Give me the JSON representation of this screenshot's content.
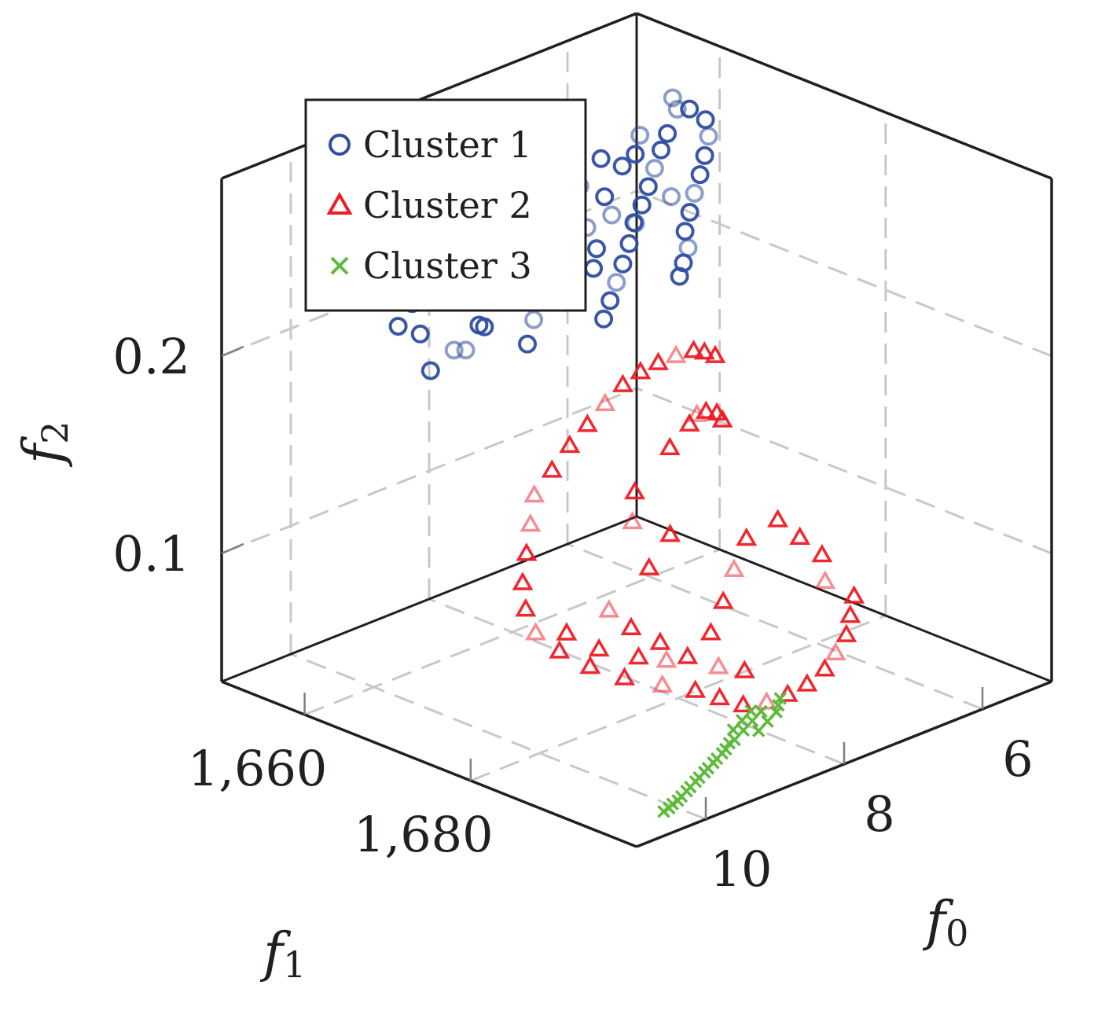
{
  "chart_data": {
    "type": "scatter",
    "dimensions": 3,
    "title": "",
    "axes": {
      "x": {
        "label": "f",
        "subscript": "0",
        "ticks": [
          "6",
          "8",
          "10"
        ],
        "range": [
          5,
          11
        ]
      },
      "y": {
        "label": "f",
        "subscript": "1",
        "ticks": [
          "1,660",
          "1,680"
        ],
        "range": [
          1650,
          1700
        ]
      },
      "z": {
        "label": "f",
        "subscript": "2",
        "ticks": [
          "0.1",
          "0.2"
        ],
        "range": [
          0.035,
          0.29
        ]
      }
    },
    "grid": true,
    "legend": {
      "placement": "top-left",
      "entries": [
        {
          "label": "Cluster 1",
          "marker": "circle",
          "color": "#2f4ea0"
        },
        {
          "label": "Cluster 2",
          "marker": "triangle",
          "color": "#ee1c25"
        },
        {
          "label": "Cluster 3",
          "marker": "cross",
          "color": "#5dba3a"
        }
      ]
    },
    "series": [
      {
        "name": "Cluster 1",
        "marker": "circle",
        "color": "#2f4ea0",
        "points": [
          [
            5.2,
            1656.0,
            0.26
          ],
          [
            5.1,
            1657.2,
            0.255
          ],
          [
            5.0,
            1658.3,
            0.25
          ],
          [
            5.1,
            1659.5,
            0.245
          ],
          [
            5.3,
            1660.7,
            0.24
          ],
          [
            5.5,
            1661.8,
            0.235
          ],
          [
            5.7,
            1662.8,
            0.23
          ],
          [
            5.9,
            1663.9,
            0.225
          ],
          [
            6.1,
            1665.0,
            0.22
          ],
          [
            6.2,
            1666.2,
            0.215
          ],
          [
            6.4,
            1667.3,
            0.212
          ],
          [
            6.6,
            1668.5,
            0.21
          ],
          [
            5.3,
            1657.4,
            0.258
          ],
          [
            5.6,
            1658.7,
            0.252
          ],
          [
            5.8,
            1659.6,
            0.248
          ],
          [
            6.0,
            1660.5,
            0.243
          ],
          [
            6.2,
            1661.4,
            0.238
          ],
          [
            6.4,
            1662.3,
            0.233
          ],
          [
            6.6,
            1663.2,
            0.228
          ],
          [
            6.8,
            1664.1,
            0.222
          ],
          [
            7.0,
            1665.0,
            0.216
          ],
          [
            7.2,
            1665.9,
            0.211
          ],
          [
            7.4,
            1666.8,
            0.206
          ],
          [
            7.6,
            1667.7,
            0.201
          ],
          [
            5.9,
            1657.9,
            0.254
          ],
          [
            6.3,
            1659.1,
            0.246
          ],
          [
            6.7,
            1660.3,
            0.238
          ],
          [
            7.1,
            1661.5,
            0.23
          ],
          [
            7.5,
            1662.7,
            0.222
          ],
          [
            7.9,
            1663.9,
            0.214
          ],
          [
            8.3,
            1665.1,
            0.206
          ],
          [
            8.5,
            1666.0,
            0.198
          ],
          [
            6.5,
            1658.2,
            0.251
          ],
          [
            6.9,
            1659.0,
            0.244
          ],
          [
            7.3,
            1659.9,
            0.237
          ],
          [
            7.7,
            1660.8,
            0.23
          ],
          [
            8.1,
            1661.7,
            0.223
          ],
          [
            8.5,
            1662.6,
            0.216
          ],
          [
            8.9,
            1663.5,
            0.209
          ],
          [
            9.2,
            1664.4,
            0.202
          ],
          [
            7.2,
            1656.5,
            0.262
          ],
          [
            7.6,
            1657.3,
            0.256
          ],
          [
            8.0,
            1658.1,
            0.25
          ],
          [
            8.4,
            1658.9,
            0.244
          ],
          [
            8.8,
            1659.7,
            0.238
          ],
          [
            9.2,
            1660.5,
            0.232
          ],
          [
            9.6,
            1661.3,
            0.226
          ],
          [
            9.9,
            1662.1,
            0.22
          ],
          [
            6.0,
            1662.5,
            0.232
          ],
          [
            6.6,
            1663.0,
            0.228
          ],
          [
            7.2,
            1663.5,
            0.224
          ],
          [
            7.8,
            1664.0,
            0.22
          ],
          [
            8.4,
            1664.5,
            0.216
          ],
          [
            9.0,
            1665.0,
            0.212
          ],
          [
            9.5,
            1665.5,
            0.208
          ],
          [
            9.9,
            1666.0,
            0.204
          ],
          [
            6.1,
            1659.0,
            0.249
          ],
          [
            6.8,
            1662.0,
            0.233
          ],
          [
            7.4,
            1664.8,
            0.219
          ],
          [
            8.1,
            1660.1,
            0.236
          ],
          [
            8.7,
            1662.9,
            0.222
          ],
          [
            9.3,
            1659.2,
            0.235
          ],
          [
            9.7,
            1663.1,
            0.215
          ],
          [
            7.9,
            1658.0,
            0.247
          ]
        ]
      },
      {
        "name": "Cluster 2",
        "marker": "triangle",
        "color": "#ee1c25",
        "points": [
          [
            10.2,
            1681.0,
            0.17
          ],
          [
            9.8,
            1679.8,
            0.175
          ],
          [
            9.4,
            1678.6,
            0.18
          ],
          [
            9.0,
            1677.4,
            0.183
          ],
          [
            8.6,
            1676.2,
            0.186
          ],
          [
            8.2,
            1675.0,
            0.188
          ],
          [
            7.8,
            1673.8,
            0.187
          ],
          [
            7.4,
            1672.6,
            0.184
          ],
          [
            7.0,
            1671.4,
            0.18
          ],
          [
            6.6,
            1670.2,
            0.175
          ],
          [
            6.3,
            1669.0,
            0.168
          ],
          [
            6.0,
            1667.8,
            0.16
          ],
          [
            10.4,
            1682.2,
            0.16
          ],
          [
            10.6,
            1683.4,
            0.15
          ],
          [
            10.8,
            1684.6,
            0.14
          ],
          [
            10.9,
            1685.8,
            0.13
          ],
          [
            10.9,
            1687.0,
            0.12
          ],
          [
            10.7,
            1688.2,
            0.11
          ],
          [
            10.4,
            1689.4,
            0.1
          ],
          [
            10.0,
            1690.2,
            0.09
          ],
          [
            9.5,
            1690.6,
            0.08
          ],
          [
            9.0,
            1690.4,
            0.07
          ],
          [
            8.6,
            1690.0,
            0.06
          ],
          [
            8.2,
            1689.5,
            0.05
          ],
          [
            7.8,
            1689.0,
            0.045
          ],
          [
            7.4,
            1688.2,
            0.042
          ],
          [
            7.0,
            1687.2,
            0.04
          ],
          [
            6.6,
            1686.0,
            0.04
          ],
          [
            6.3,
            1684.8,
            0.042
          ],
          [
            6.0,
            1683.6,
            0.045
          ],
          [
            5.8,
            1682.4,
            0.05
          ],
          [
            5.6,
            1681.2,
            0.055
          ],
          [
            9.6,
            1685.0,
            0.11
          ],
          [
            9.4,
            1686.0,
            0.1
          ],
          [
            9.1,
            1687.0,
            0.09
          ],
          [
            8.8,
            1687.8,
            0.08
          ],
          [
            8.4,
            1688.2,
            0.07
          ],
          [
            8.0,
            1688.0,
            0.062
          ],
          [
            8.9,
            1684.0,
            0.12
          ],
          [
            8.5,
            1683.2,
            0.13
          ],
          [
            8.9,
            1682.0,
            0.14
          ],
          [
            8.7,
            1680.6,
            0.15
          ],
          [
            8.0,
            1679.0,
            0.16
          ],
          [
            7.5,
            1677.2,
            0.162
          ],
          [
            7.2,
            1675.6,
            0.16
          ],
          [
            6.9,
            1674.2,
            0.155
          ],
          [
            6.6,
            1673.0,
            0.148
          ],
          [
            6.4,
            1672.0,
            0.14
          ],
          [
            9.2,
            1688.6,
            0.085
          ],
          [
            9.7,
            1689.4,
            0.095
          ],
          [
            10.2,
            1688.8,
            0.105
          ],
          [
            10.5,
            1687.4,
            0.115
          ],
          [
            5.9,
            1680.2,
            0.065
          ],
          [
            5.8,
            1679.0,
            0.075
          ],
          [
            6.0,
            1678.0,
            0.085
          ],
          [
            6.2,
            1677.0,
            0.095
          ],
          [
            7.6,
            1683.4,
            0.1
          ],
          [
            7.9,
            1684.6,
            0.09
          ],
          [
            8.2,
            1685.6,
            0.08
          ],
          [
            7.3,
            1682.4,
            0.11
          ]
        ]
      },
      {
        "name": "Cluster 3",
        "marker": "cross",
        "color": "#5dba3a",
        "points": [
          [
            8.0,
            1690.0,
            0.045
          ],
          [
            8.2,
            1690.6,
            0.044
          ],
          [
            8.4,
            1691.2,
            0.043
          ],
          [
            8.6,
            1691.8,
            0.042
          ],
          [
            8.8,
            1692.4,
            0.041
          ],
          [
            9.0,
            1693.0,
            0.04
          ],
          [
            9.2,
            1693.6,
            0.039
          ],
          [
            9.4,
            1694.2,
            0.038
          ],
          [
            9.6,
            1694.8,
            0.037
          ],
          [
            9.8,
            1695.4,
            0.036
          ],
          [
            10.0,
            1696.0,
            0.036
          ],
          [
            10.2,
            1696.6,
            0.036
          ],
          [
            7.8,
            1690.4,
            0.046
          ],
          [
            7.9,
            1691.0,
            0.045
          ],
          [
            8.1,
            1691.6,
            0.044
          ],
          [
            8.3,
            1692.2,
            0.043
          ],
          [
            8.1,
            1689.6,
            0.046
          ],
          [
            8.3,
            1690.2,
            0.045
          ],
          [
            8.5,
            1690.8,
            0.044
          ],
          [
            7.7,
            1689.8,
            0.047
          ],
          [
            8.7,
            1692.0,
            0.042
          ],
          [
            8.9,
            1692.8,
            0.041
          ],
          [
            9.1,
            1693.4,
            0.04
          ],
          [
            9.3,
            1694.0,
            0.039
          ],
          [
            9.5,
            1694.6,
            0.038
          ],
          [
            9.7,
            1695.2,
            0.037
          ],
          [
            9.9,
            1695.8,
            0.036
          ],
          [
            10.1,
            1696.4,
            0.036
          ]
        ]
      }
    ]
  }
}
